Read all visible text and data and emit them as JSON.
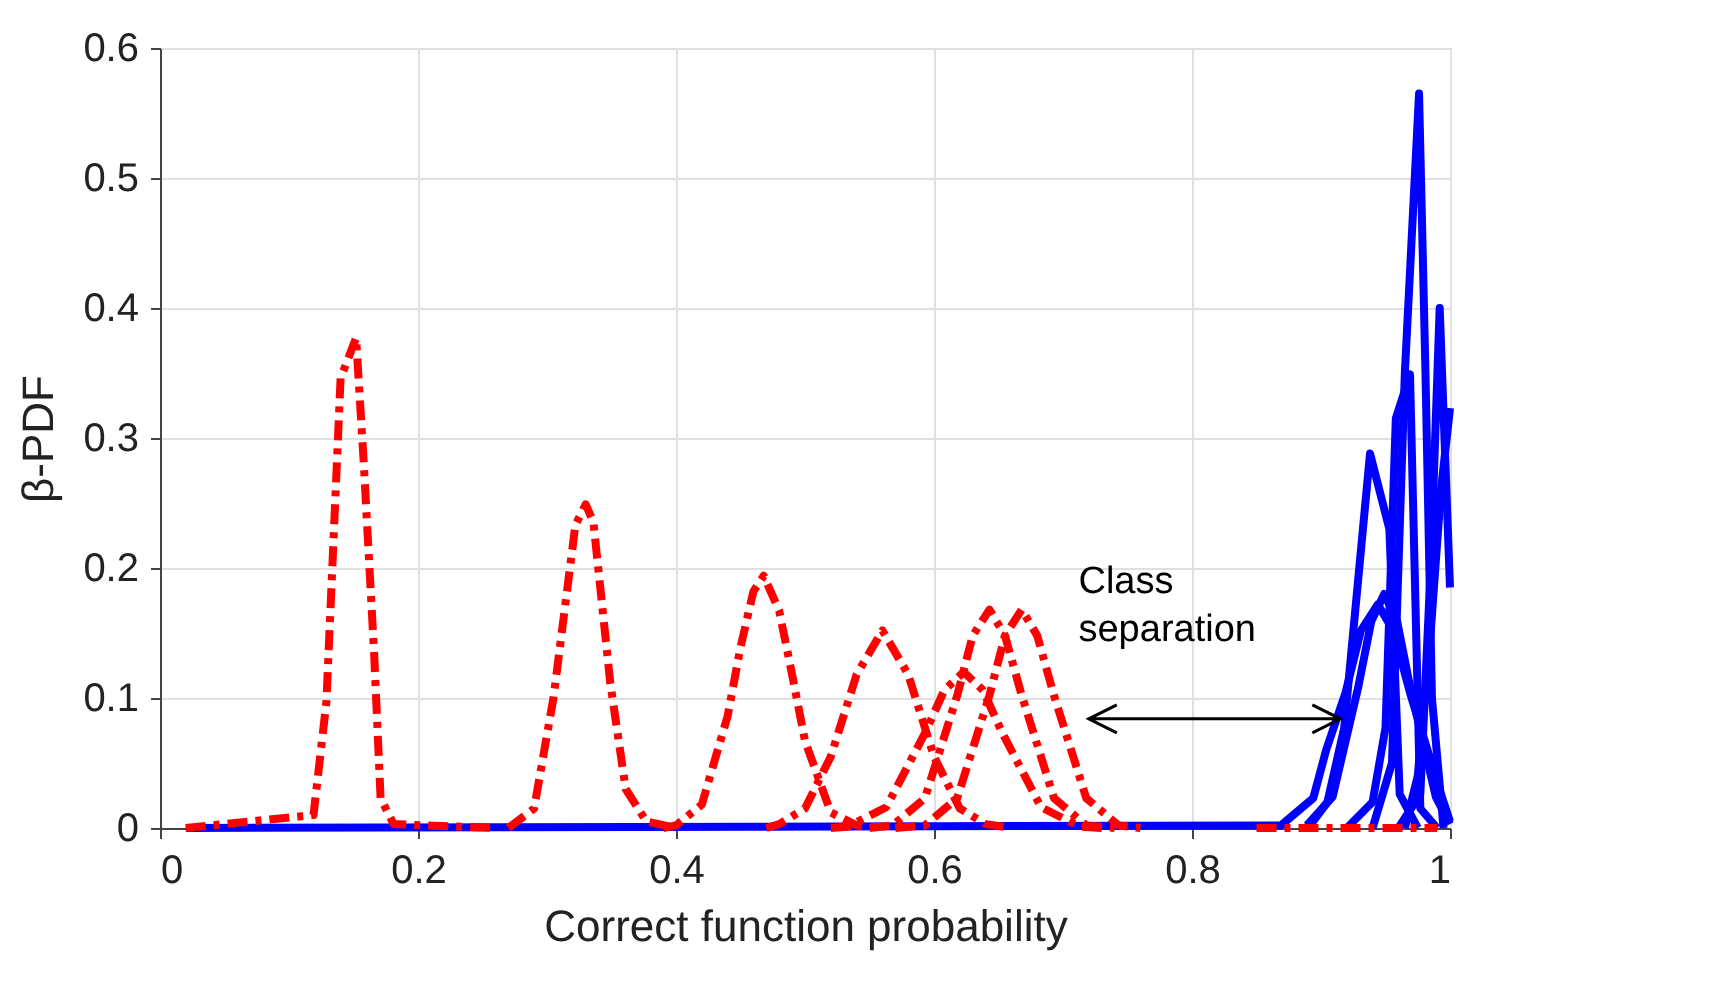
{
  "chart_data": {
    "type": "line",
    "xlabel": "Correct function probability",
    "ylabel": "β-PDF",
    "xlim": [
      0,
      1
    ],
    "ylim": [
      0,
      0.6
    ],
    "xticks": [
      0,
      0.2,
      0.4,
      0.6,
      0.8,
      1
    ],
    "yticks": [
      0,
      0.1,
      0.2,
      0.3,
      0.4,
      0.5,
      0.6
    ],
    "grid": true,
    "marker": "none",
    "annotations": [
      "Class separation"
    ],
    "series": [
      {
        "color": "#0000ff",
        "line_style": "solid",
        "x": [
          0.02,
          0.869,
          0.894,
          0.904,
          0.919,
          0.931,
          0.944,
          0.956,
          0.969,
          0.994,
          1.0
        ],
        "values": [
          0,
          0.002,
          0.023,
          0.06,
          0.104,
          0.152,
          0.172,
          0.152,
          0.104,
          0.023,
          0.005
        ]
      },
      {
        "color": "#0000ff",
        "line_style": "solid",
        "x": [
          0.889,
          0.909,
          0.929,
          0.939,
          0.949,
          0.959,
          0.969,
          0.989,
          1.0
        ],
        "values": [
          0.002,
          0.024,
          0.109,
          0.159,
          0.18,
          0.159,
          0.109,
          0.024,
          0.003
        ]
      },
      {
        "color": "#0000ff",
        "line_style": "solid",
        "x": [
          0.89,
          0.905,
          0.918,
          0.938,
          0.953,
          0.961,
          0.975
        ],
        "values": [
          0,
          0.02,
          0.077,
          0.288,
          0.23,
          0.026,
          0
        ]
      },
      {
        "color": "#0000ff",
        "line_style": "solid",
        "x": [
          0.92,
          0.94,
          0.95,
          0.958,
          0.969,
          0.977,
          0.99
        ],
        "values": [
          0,
          0.02,
          0.077,
          0.315,
          0.349,
          0.015,
          0
        ]
      },
      {
        "color": "#0000ff",
        "line_style": "solid",
        "x": [
          0.94,
          0.955,
          0.965,
          0.976,
          0.981,
          0.986,
          0.995
        ],
        "values": [
          0,
          0.05,
          0.35,
          0.565,
          0.35,
          0.1,
          0
        ]
      },
      {
        "color": "#0000ff",
        "line_style": "solid",
        "x": [
          0.96,
          0.977,
          0.985,
          0.992,
          1.0
        ],
        "values": [
          0,
          0.026,
          0.2,
          0.4,
          0.185
        ]
      },
      {
        "color": "#0000ff",
        "line_style": "solid",
        "x": [
          0.965,
          0.975,
          0.985,
          0.993,
          1.0
        ],
        "values": [
          0,
          0.04,
          0.15,
          0.26,
          0.323
        ]
      },
      {
        "color": "#ff0000",
        "line_style": "dashed",
        "x": [
          0.02,
          0.119,
          0.129,
          0.14,
          0.147,
          0.152,
          0.158,
          0.166,
          0.171,
          0.181,
          0.26
        ],
        "values": [
          0,
          0.01,
          0.097,
          0.346,
          0.364,
          0.377,
          0.28,
          0.134,
          0.023,
          0.003,
          0
        ]
      },
      {
        "color": "#ff0000",
        "line_style": "dashed",
        "x": [
          0.27,
          0.29,
          0.305,
          0.322,
          0.33,
          0.336,
          0.349,
          0.361,
          0.377,
          0.4
        ],
        "values": [
          0,
          0.015,
          0.1,
          0.233,
          0.249,
          0.235,
          0.112,
          0.03,
          0.005,
          0
        ]
      },
      {
        "color": "#ff0000",
        "line_style": "dashed",
        "x": [
          0.39,
          0.4,
          0.42,
          0.44,
          0.45,
          0.46,
          0.468,
          0.48,
          0.49,
          0.5,
          0.52,
          0.54,
          0.56
        ],
        "values": [
          0,
          0.002,
          0.018,
          0.086,
          0.139,
          0.182,
          0.194,
          0.167,
          0.118,
          0.067,
          0.012,
          0.002,
          0
        ]
      },
      {
        "color": "#ff0000",
        "line_style": "dashed",
        "x": [
          0.47,
          0.48,
          0.5,
          0.52,
          0.54,
          0.56,
          0.58,
          0.6,
          0.62,
          0.64,
          0.66
        ],
        "values": [
          0,
          0.003,
          0.015,
          0.055,
          0.118,
          0.152,
          0.118,
          0.055,
          0.015,
          0.003,
          0
        ]
      },
      {
        "color": "#ff0000",
        "line_style": "dashed",
        "x": [
          0.52,
          0.533,
          0.563,
          0.593,
          0.608,
          0.623,
          0.638,
          0.653,
          0.683,
          0.713,
          0.73
        ],
        "values": [
          0,
          0.001,
          0.016,
          0.073,
          0.106,
          0.12,
          0.106,
          0.073,
          0.016,
          0.001,
          0
        ]
      },
      {
        "color": "#ff0000",
        "line_style": "dashed",
        "x": [
          0.55,
          0.568,
          0.593,
          0.618,
          0.63,
          0.643,
          0.655,
          0.668,
          0.693,
          0.718,
          0.74
        ],
        "values": [
          0,
          0.002,
          0.023,
          0.102,
          0.148,
          0.168,
          0.148,
          0.102,
          0.023,
          0.002,
          0
        ]
      },
      {
        "color": "#ff0000",
        "line_style": "dashed",
        "x": [
          0.57,
          0.593,
          0.618,
          0.643,
          0.655,
          0.668,
          0.68,
          0.693,
          0.718,
          0.743,
          0.76
        ],
        "values": [
          0,
          0.002,
          0.023,
          0.102,
          0.148,
          0.168,
          0.148,
          0.102,
          0.023,
          0.002,
          0
        ]
      },
      {
        "color": "#ff0000",
        "line_style": "dashed",
        "x": [
          0.85,
          0.99
        ],
        "values": [
          0,
          0
        ]
      }
    ]
  }
}
